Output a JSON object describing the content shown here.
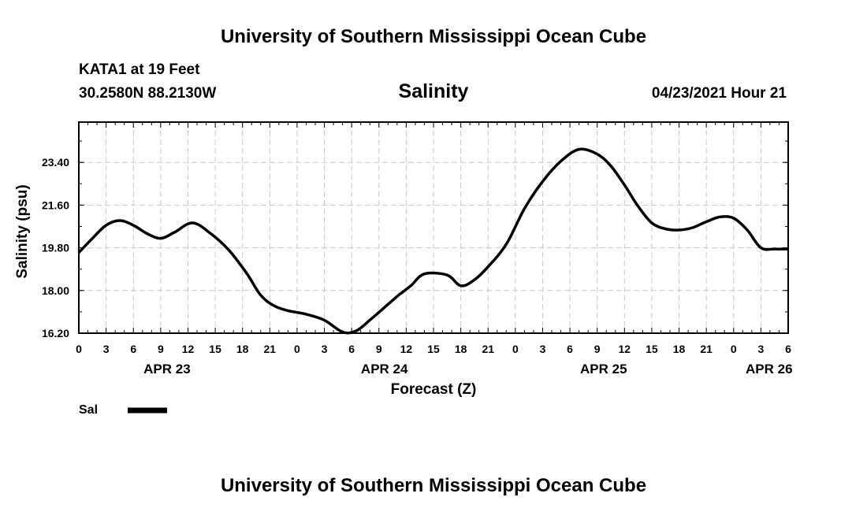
{
  "header_title": "University of Southern Mississippi Ocean Cube",
  "footer_title": "University of Southern Mississippi Ocean Cube",
  "station": "KATA1 at 19 Feet",
  "coords": "30.2580N  88.2130W",
  "datetime": "04/23/2021 Hour 21",
  "legend": {
    "label": "Sal",
    "color": "#000000"
  },
  "chart_data": {
    "type": "line",
    "title": "Salinity",
    "xlabel": "Forecast (Z)",
    "ylabel": "Salinity (psu)",
    "x_unit": "hours since 2021-04-23 00Z",
    "xlim": [
      0,
      78
    ],
    "ylim": [
      16.2,
      25.1
    ],
    "grid": true,
    "y_ticks": [
      16.2,
      18.0,
      19.8,
      21.6,
      23.4
    ],
    "y_tick_labels": [
      "16.20",
      "18.00",
      "19.80",
      "21.60",
      "23.40"
    ],
    "x_ticks": [
      0,
      3,
      6,
      9,
      12,
      15,
      18,
      21,
      24,
      27,
      30,
      33,
      36,
      39,
      42,
      45,
      48,
      51,
      54,
      57,
      60,
      63,
      66,
      69,
      72,
      75,
      78
    ],
    "x_tick_labels": [
      "0",
      "3",
      "6",
      "9",
      "12",
      "15",
      "18",
      "21",
      "0",
      "3",
      "6",
      "9",
      "12",
      "15",
      "18",
      "21",
      "0",
      "3",
      "6",
      "9",
      "12",
      "15",
      "18",
      "21",
      "0",
      "3",
      "6"
    ],
    "date_labels": [
      {
        "x": 9.7,
        "label": "APR 23"
      },
      {
        "x": 33.6,
        "label": "APR 24"
      },
      {
        "x": 57.7,
        "label": "APR 25"
      },
      {
        "x": 75.9,
        "label": "APR 26"
      }
    ],
    "series": [
      {
        "name": "Sal",
        "color": "#000000",
        "x": [
          0,
          1.5,
          3,
          4.5,
          6,
          7.5,
          9,
          10.5,
          12.5,
          14.5,
          16.5,
          18.5,
          20,
          21.5,
          23,
          25,
          27,
          29,
          30.5,
          32,
          33.5,
          35,
          36.5,
          38,
          40.5,
          42,
          43.5,
          45,
          47,
          49,
          51,
          53,
          55,
          57,
          58.5,
          60,
          61.5,
          63,
          64.5,
          66,
          67.5,
          69,
          70.5,
          72,
          73.5,
          75,
          76.5,
          78
        ],
        "values": [
          19.6,
          20.2,
          20.75,
          20.95,
          20.75,
          20.4,
          20.2,
          20.45,
          20.85,
          20.4,
          19.7,
          18.7,
          17.8,
          17.35,
          17.15,
          17.0,
          16.75,
          16.25,
          16.3,
          16.75,
          17.25,
          17.75,
          18.2,
          18.7,
          18.65,
          18.2,
          18.45,
          19.0,
          19.95,
          21.45,
          22.6,
          23.45,
          23.95,
          23.75,
          23.25,
          22.45,
          21.55,
          20.85,
          20.6,
          20.55,
          20.65,
          20.9,
          21.1,
          21.05,
          20.55,
          19.8,
          19.75,
          19.75
        ]
      }
    ]
  }
}
